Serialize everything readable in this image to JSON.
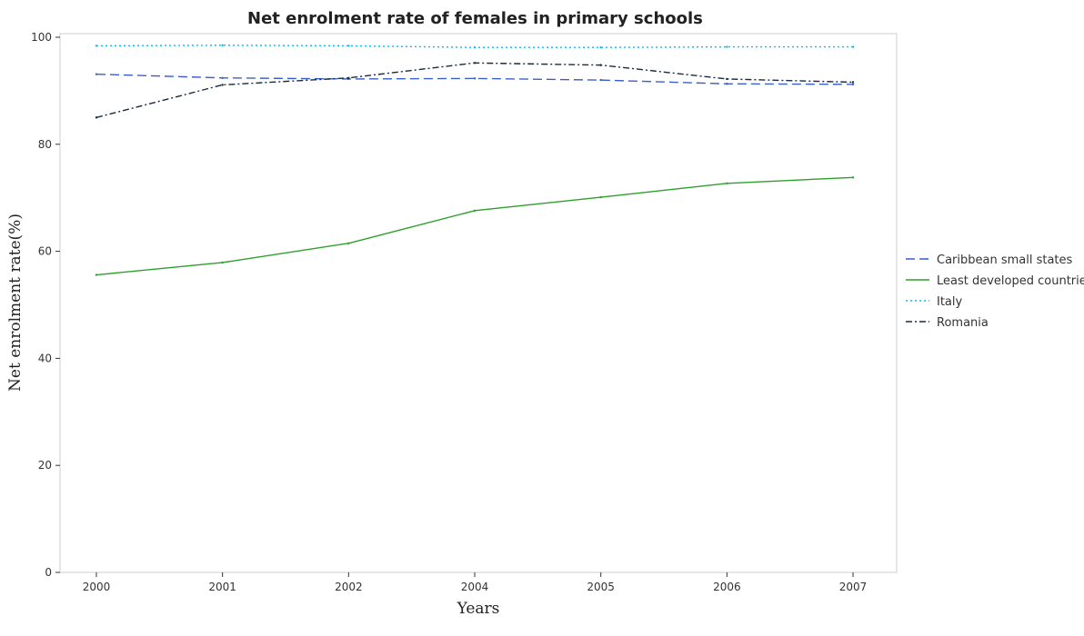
{
  "chart_data": {
    "type": "line",
    "title": "Net enrolment rate of females in primary schools",
    "xlabel": "Years",
    "ylabel": "Net enrolment rate(%)",
    "categories": [
      "2000",
      "2001",
      "2002",
      "2004",
      "2005",
      "2006",
      "2007"
    ],
    "ylim": [
      0,
      100
    ],
    "yticks": [
      "0",
      "20",
      "40",
      "60",
      "80",
      "100"
    ],
    "grid": false,
    "legend_position": "right",
    "series": [
      {
        "name": "Caribbean small states",
        "color": "#3a5fcd",
        "dash": "10,5",
        "values": [
          93.1,
          92.4,
          92.2,
          92.3,
          92.0,
          91.3,
          91.2
        ]
      },
      {
        "name": "Least developed countries",
        "color": "#2ca02c",
        "dash": "",
        "values": [
          55.6,
          57.9,
          61.5,
          67.6,
          70.1,
          72.7,
          73.8
        ]
      },
      {
        "name": "Italy",
        "color": "#00bfff",
        "dash": "2,3",
        "values": [
          98.4,
          98.5,
          98.4,
          98.1,
          98.1,
          98.2,
          98.2
        ]
      },
      {
        "name": "Romania",
        "color": "#1a2a3a",
        "dash": "7,3,2,3",
        "values": [
          85.0,
          91.1,
          92.4,
          95.2,
          94.8,
          92.2,
          91.6
        ]
      }
    ]
  }
}
